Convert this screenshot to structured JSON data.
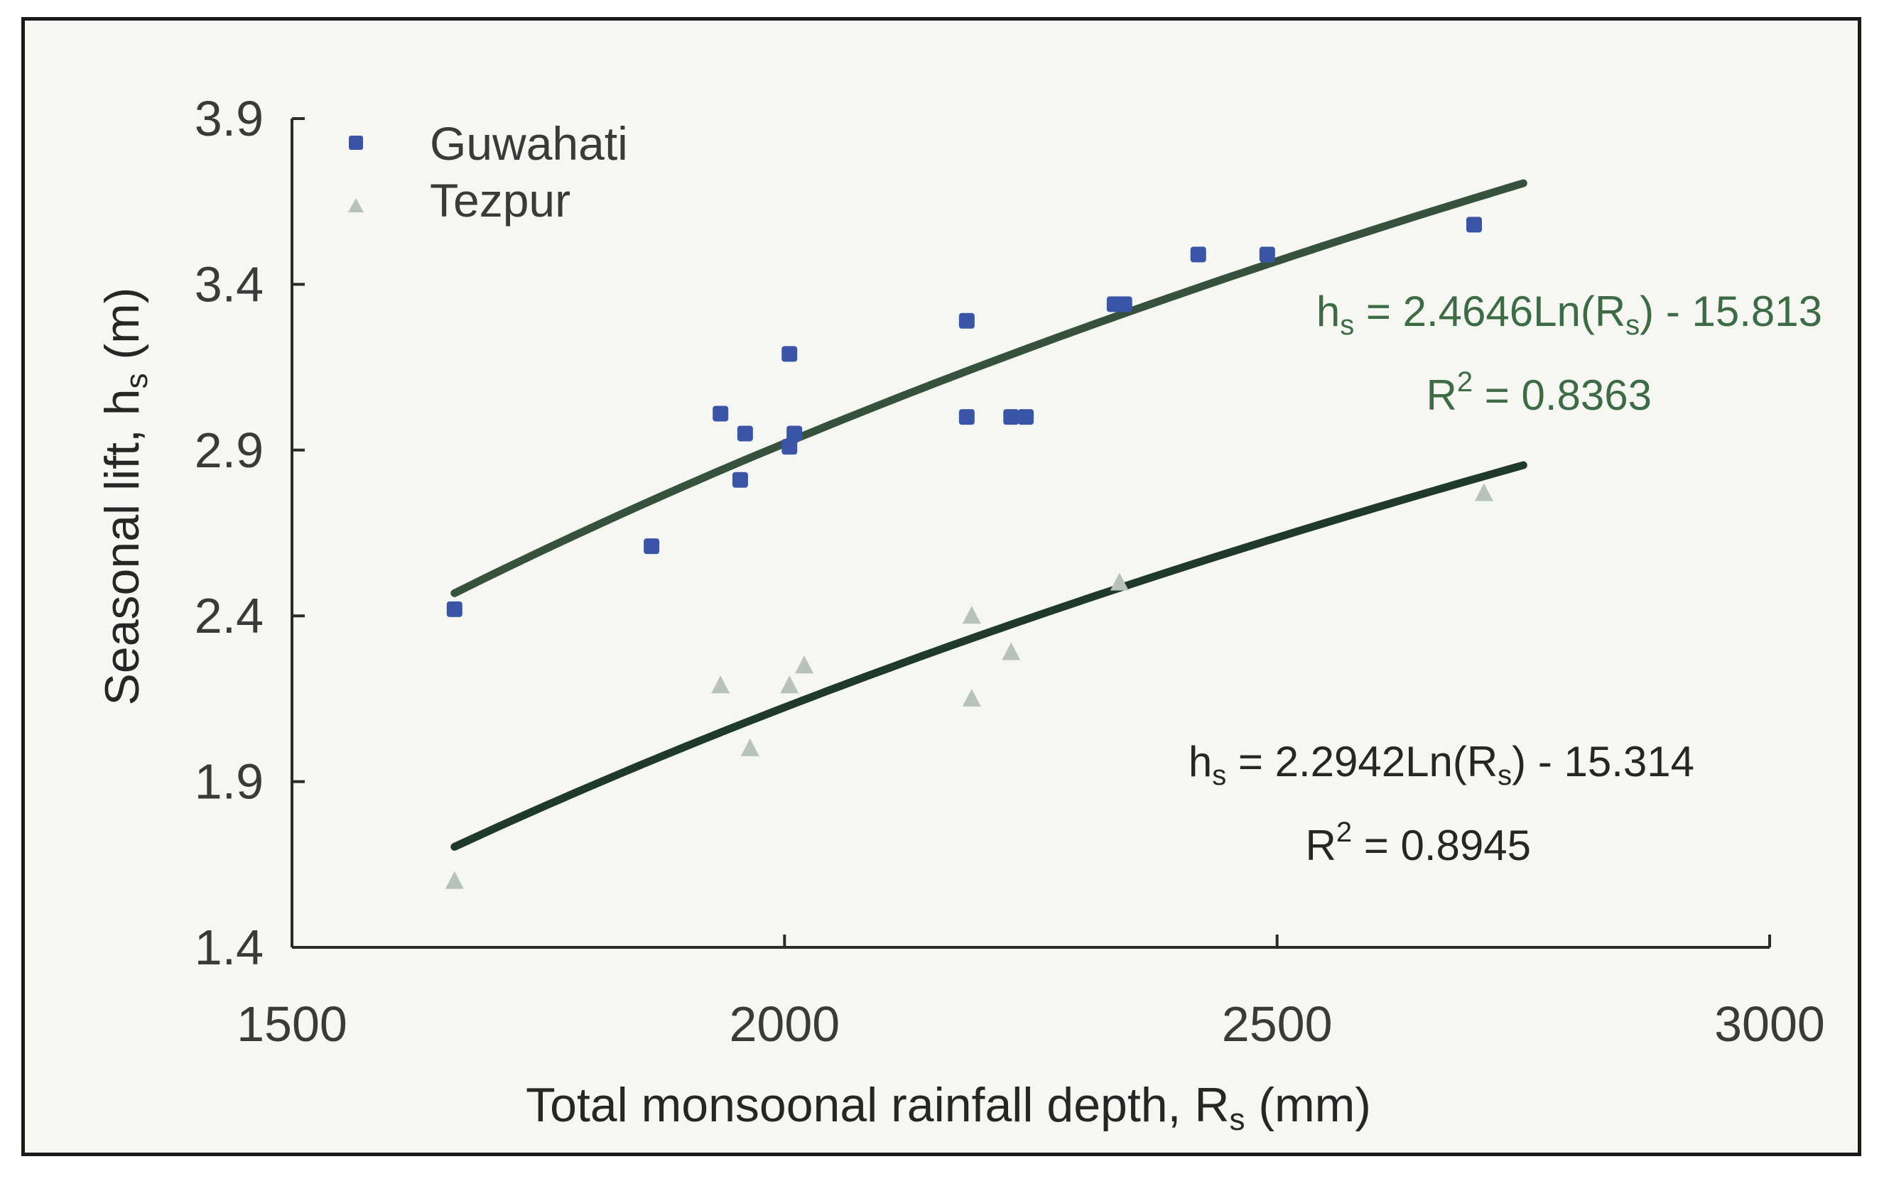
{
  "chart_data": {
    "type": "scatter",
    "xlabel": "Total monsoonal rainfall depth, R",
    "xlabel_sub": "s",
    "xlabel_unit": " (mm)",
    "ylabel": "Seasonal lift, h",
    "ylabel_sub": "s",
    "ylabel_unit": " (m)",
    "xlim": [
      1500,
      3000
    ],
    "ylim": [
      1.4,
      3.9
    ],
    "xticks": [
      1500,
      2000,
      2500,
      3000
    ],
    "yticks": [
      1.4,
      1.9,
      2.4,
      2.9,
      3.4,
      3.9
    ],
    "xtick_labels": [
      "1500",
      "2000",
      "2500",
      "3000"
    ],
    "ytick_labels": [
      "1.4",
      "1.9",
      "2.4",
      "2.9",
      "3.4",
      "3.9"
    ],
    "legend_position": "top-left",
    "series": [
      {
        "name": "Guwahati",
        "marker": "square",
        "color": "#3a55a6",
        "points": [
          [
            1665,
            2.42
          ],
          [
            1865,
            2.61
          ],
          [
            1935,
            3.01
          ],
          [
            1955,
            2.81
          ],
          [
            1960,
            2.95
          ],
          [
            2005,
            3.19
          ],
          [
            2005,
            2.91
          ],
          [
            2010,
            2.95
          ],
          [
            2185,
            3.29
          ],
          [
            2185,
            3.0
          ],
          [
            2230,
            3.0
          ],
          [
            2245,
            3.0
          ],
          [
            2335,
            3.34
          ],
          [
            2345,
            3.34
          ],
          [
            2420,
            3.49
          ],
          [
            2490,
            3.49
          ],
          [
            2700,
            3.58
          ]
        ],
        "trendline": {
          "equation_lhs": "h",
          "equation_lhs_sub": "s",
          "equation_mid": " = 2.4646Ln(R",
          "equation_mid_sub": "s",
          "equation_end": ") - 15.813",
          "r2_prefix": "R",
          "r2_sup": "2",
          "r2_value": " = 0.8363",
          "a": 2.4646,
          "b": -15.813,
          "x_range": [
            1665,
            2750
          ],
          "color": "#36523d",
          "text_color": "#3d6b45"
        }
      },
      {
        "name": "Tezpur",
        "marker": "triangle",
        "color": "#b8c2bd",
        "points": [
          [
            1665,
            1.6
          ],
          [
            1935,
            2.19
          ],
          [
            1965,
            2.0
          ],
          [
            2005,
            2.19
          ],
          [
            2020,
            2.25
          ],
          [
            2190,
            2.4
          ],
          [
            2190,
            2.15
          ],
          [
            2230,
            2.29
          ],
          [
            2340,
            2.5
          ],
          [
            2710,
            2.77
          ]
        ],
        "trendline": {
          "equation_lhs": "h",
          "equation_lhs_sub": "s",
          "equation_mid": " = 2.2942Ln(R",
          "equation_mid_sub": "s",
          "equation_end": ") - 15.314",
          "r2_prefix": "R",
          "r2_sup": "2",
          "r2_value": " = 0.8945",
          "a": 2.2942,
          "b": -15.314,
          "x_range": [
            1665,
            2750
          ],
          "color": "#1f3a2a",
          "text_color": "#262626"
        }
      }
    ]
  }
}
